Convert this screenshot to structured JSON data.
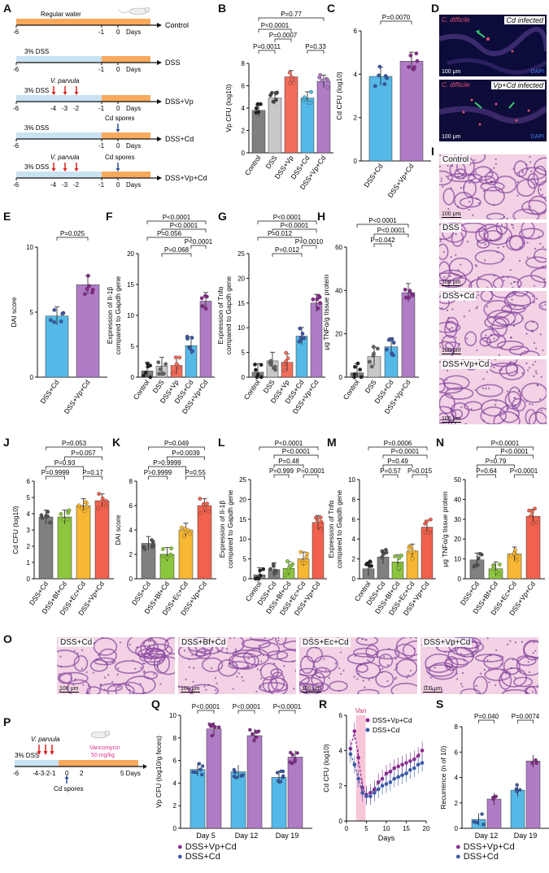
{
  "panel_letters": [
    "A",
    "B",
    "C",
    "D",
    "E",
    "F",
    "G",
    "H",
    "I",
    "J",
    "K",
    "L",
    "M",
    "N",
    "O",
    "P",
    "Q",
    "R",
    "S"
  ],
  "timelines": {
    "axis_ticks": [
      "-6",
      "-1",
      "0",
      "Days"
    ],
    "groups": [
      {
        "label": "Control",
        "header": "Regular water",
        "vp": false,
        "cd": false
      },
      {
        "label": "DSS",
        "header": "3% DSS",
        "vp": false,
        "cd": false
      },
      {
        "label": "DSS+Vp",
        "header": "3% DSS",
        "vp": true,
        "cd": false
      },
      {
        "label": "DSS+Cd",
        "header": "3% DSS",
        "vp": false,
        "cd": true
      },
      {
        "label": "DSS+Vp+Cd",
        "header": "3% DSS",
        "vp": true,
        "cd": true
      }
    ],
    "vp_label": "V. parvula",
    "vp_ticks": [
      "-4",
      "-3",
      "-2"
    ],
    "cd_label": "Cd spores"
  },
  "colors": {
    "control": "#808080",
    "dss": "#c8c8c8",
    "vp": "#f26d5b",
    "cd": "#55b9e8",
    "vpcd": "#b07cc6",
    "bf": "#8cc63e",
    "ec": "#f7b733",
    "vpcd_red": "#f0624d",
    "cd_dark": "#3a59a8",
    "vpcd_dark": "#8a2a8f",
    "orange_tl": "#f7a95c",
    "blue_tl": "#c9e2f2"
  },
  "chart_data": [
    {
      "panel": "B",
      "type": "bar",
      "ylabel": "Vp CFU (log10)",
      "ylim": [
        0,
        8
      ],
      "yticks": [
        0,
        2,
        4,
        6,
        8
      ],
      "categories": [
        "Control",
        "DSS",
        "DSS+Vp",
        "DSS+Cd",
        "DSS+Vp+Cd"
      ],
      "values": [
        3.8,
        4.9,
        6.8,
        4.9,
        6.4
      ],
      "pvalues": [
        "P=0.77",
        "P<0.0001",
        "P=0.0007",
        "P=0.0011",
        "P=0.33"
      ]
    },
    {
      "panel": "C",
      "type": "bar",
      "ylabel": "Cd CFU (log10)",
      "ylim": [
        0,
        6
      ],
      "yticks": [
        0,
        2,
        4,
        6
      ],
      "categories": [
        "DSS+Cd",
        "DSS+Vp+Cd"
      ],
      "values": [
        3.9,
        4.6
      ],
      "pvalues": [
        "P=0.0070"
      ]
    },
    {
      "panel": "E",
      "type": "bar",
      "ylabel": "DAI score",
      "ylim": [
        0,
        10
      ],
      "yticks": [
        0,
        5,
        10
      ],
      "categories": [
        "DSS+Cd",
        "DSS+Vp+Cd"
      ],
      "values": [
        4.7,
        7.1
      ],
      "pvalues": [
        "P=0.025"
      ]
    },
    {
      "panel": "F",
      "type": "bar",
      "ylabel": "Expression of Il-1β compared to Gapdh gene",
      "ylim": [
        0,
        20
      ],
      "yticks": [
        0,
        5,
        10,
        15,
        20
      ],
      "categories": [
        "Control",
        "DSS",
        "DSS+Vp",
        "DSS+Cd",
        "DSS+Vp+Cd"
      ],
      "values": [
        1.0,
        1.8,
        1.9,
        5.1,
        12.3
      ],
      "pvalues": [
        "P<0.0001",
        "P<0.0001",
        "P=0.056",
        "P<0.0001",
        "P=0.068"
      ]
    },
    {
      "panel": "G",
      "type": "bar",
      "ylabel": "Expression of Tnfα compared to Gapdh gene",
      "ylim": [
        0,
        25
      ],
      "yticks": [
        0,
        5,
        10,
        15,
        20,
        25
      ],
      "categories": [
        "Control",
        "DSS",
        "DSS+Vp",
        "DSS+Cd",
        "DSS+Vp+Cd"
      ],
      "values": [
        1.0,
        3.3,
        3.0,
        8.3,
        15.0
      ],
      "pvalues": [
        "P<0.0001",
        "P<0.0001",
        "P=0.012",
        "P=0.0010",
        "P=0.012"
      ]
    },
    {
      "panel": "H",
      "type": "bar",
      "ylabel": "μg TNFα/g tissue protein",
      "ylim": [
        0,
        60
      ],
      "yticks": [
        0,
        20,
        40,
        60
      ],
      "categories": [
        "Control",
        "DSS",
        "DSS+Cd",
        "DSS+Vp+Cd"
      ],
      "values": [
        2,
        9.5,
        14,
        39
      ],
      "pvalues": [
        "P<0.0001",
        "P<0.0001",
        "P=0.042"
      ]
    },
    {
      "panel": "J",
      "type": "bar",
      "ylabel": "Cd CFU (log10)",
      "ylim": [
        0,
        6
      ],
      "yticks": [
        0,
        1,
        2,
        3,
        4,
        5,
        6
      ],
      "categories": [
        "DSS+Cd",
        "DSS+Bf+Cd",
        "DSS+Ec+Cd",
        "DSS+Vp+Cd"
      ],
      "values": [
        3.8,
        3.8,
        4.5,
        4.8
      ],
      "pvalues": [
        "P=0.053",
        "P=0.057",
        "P=0.93",
        "P=0.9999",
        "P=0.17"
      ]
    },
    {
      "panel": "K",
      "type": "bar",
      "ylabel": "DAI score",
      "ylim": [
        0,
        8
      ],
      "yticks": [
        0,
        2,
        4,
        6,
        8
      ],
      "categories": [
        "DSS+Cd",
        "DSS+Bf+Cd",
        "DSS+Ec+Cd",
        "DSS+Vp+Cd"
      ],
      "values": [
        2.9,
        2.0,
        4.0,
        6.0
      ],
      "pvalues": [
        "P=0.049",
        "P=0.0039",
        "P>0.9999",
        "P>0.9999",
        "P=0.55"
      ]
    },
    {
      "panel": "L",
      "type": "bar",
      "ylabel": "Expression of Il-1β compared to Gapdh gene",
      "ylim": [
        0,
        25
      ],
      "yticks": [
        0,
        5,
        10,
        15,
        20,
        25
      ],
      "categories": [
        "Control",
        "DSS+Cd",
        "DSS+Bf+Cd",
        "DSS+Ec+Cd",
        "DSS+Vp+Cd"
      ],
      "values": [
        1.0,
        2.3,
        2.6,
        5.0,
        14.2
      ],
      "pvalues": [
        "P<0.0001",
        "P<0.0001",
        "P=0.48",
        "P=0.999",
        "P=0.0001"
      ]
    },
    {
      "panel": "M",
      "type": "bar",
      "ylabel": "Expression of Tnfα compared to Gapdh gene",
      "ylim": [
        0,
        10
      ],
      "yticks": [
        0,
        2,
        4,
        6,
        8,
        10
      ],
      "categories": [
        "Control",
        "DSS+Cd",
        "DSS+Bf+Cd",
        "DSS+Ec+Cd",
        "DSS+Vp+Cd"
      ],
      "values": [
        1.0,
        2.2,
        1.7,
        2.8,
        5.2
      ],
      "pvalues": [
        "P=0.0006",
        "P<0.0001",
        "P=0.49",
        "P=0.57",
        "P=0.015"
      ]
    },
    {
      "panel": "N",
      "type": "bar",
      "ylabel": "μg TNFα/g tissue protein",
      "ylim": [
        0,
        50
      ],
      "yticks": [
        0,
        10,
        20,
        30,
        40,
        50
      ],
      "categories": [
        "DSS+Cd",
        "DSS+Bf+Cd",
        "DSS+Ec+Cd",
        "DSS+Vp+Cd"
      ],
      "values": [
        9.5,
        5.0,
        12.5,
        31.5
      ],
      "pvalues": [
        "P<0.0001",
        "P<0.0001",
        "P=0.79",
        "P=0.64",
        "P<0.0001"
      ]
    },
    {
      "panel": "Q",
      "type": "bar",
      "ylabel": "Vp CFU (log10/g feces)",
      "ylim": [
        0,
        10
      ],
      "yticks": [
        0,
        2,
        4,
        6,
        8,
        10
      ],
      "categories": [
        "Day 5",
        "Day 12",
        "Day 19"
      ],
      "series": [
        {
          "name": "DSS+Cd",
          "values": [
            5.2,
            5.0,
            4.5
          ]
        },
        {
          "name": "DSS+Vp+Cd",
          "values": [
            8.8,
            8.2,
            6.3
          ]
        }
      ],
      "pvalues": [
        "P<0.0001",
        "P<0.0001",
        "P<0.0001"
      ]
    },
    {
      "panel": "R",
      "type": "line",
      "ylabel": "Cd CFU (log10)",
      "xlabel": "Days",
      "ylim": [
        0,
        6
      ],
      "xlim": [
        0,
        20
      ],
      "yticks": [
        0,
        2,
        4,
        6
      ],
      "xticks": [
        0,
        5,
        10,
        15,
        20
      ],
      "annotation": "Van",
      "x": [
        1,
        2,
        3,
        4,
        5,
        6,
        7,
        8,
        9,
        10,
        11,
        12,
        13,
        14,
        15,
        16,
        17,
        18,
        19
      ],
      "series": [
        {
          "name": "DSS+Vp+Cd",
          "values": [
            4.1,
            5.1,
            3.6,
            1.9,
            1.5,
            1.6,
            1.8,
            2.2,
            2.4,
            2.7,
            2.8,
            3.0,
            3.1,
            3.2,
            3.3,
            3.4,
            3.5,
            3.7,
            4.0
          ]
        },
        {
          "name": "DSS+Cd",
          "values": [
            3.8,
            3.2,
            2.4,
            1.6,
            1.4,
            1.4,
            1.6,
            1.8,
            2.0,
            2.1,
            2.2,
            2.4,
            2.5,
            2.6,
            2.7,
            2.9,
            3.0,
            3.2,
            3.3
          ]
        }
      ]
    },
    {
      "panel": "S",
      "type": "bar",
      "ylabel": "Recurrence (n of 10)",
      "ylim": [
        0,
        8
      ],
      "yticks": [
        0,
        2,
        4,
        6,
        8
      ],
      "categories": [
        "Day 12",
        "Day 19"
      ],
      "series": [
        {
          "name": "DSS+Cd",
          "values": [
            0.7,
            3.0
          ]
        },
        {
          "name": "DSS+Vp+Cd",
          "values": [
            2.3,
            5.3
          ]
        }
      ],
      "pvalues": [
        "P=0.040",
        "P=0.0074"
      ]
    }
  ],
  "panel_D": {
    "top_label": "Cd infected",
    "bottom_label": "Vp+Cd infected",
    "stain": "C. difficile",
    "dapi": "DAPI",
    "scale": "100 μm"
  },
  "panel_I": {
    "labels": [
      "Control",
      "DSS",
      "DSS+Cd",
      "DSS+Vp+Cd"
    ],
    "scale": "100 μm"
  },
  "panel_O": {
    "labels": [
      "DSS+Cd",
      "DSS+Bf+Cd",
      "DSS+Ec+Cd",
      "DSS+Vp+Cd"
    ],
    "scale": "100 μm"
  },
  "panel_P": {
    "header": "3% DSS",
    "vp_label": "V. parvula",
    "vanco_line1": "Vancomycin",
    "vanco_line2": "50 mg/kg",
    "ticks": [
      "-6",
      "-4-3-2-1",
      "0",
      "2",
      "5 Days"
    ],
    "cd_label": "Cd spores"
  },
  "legends": {
    "vpcd": "DSS+Vp+Cd",
    "cd": "DSS+Cd"
  }
}
